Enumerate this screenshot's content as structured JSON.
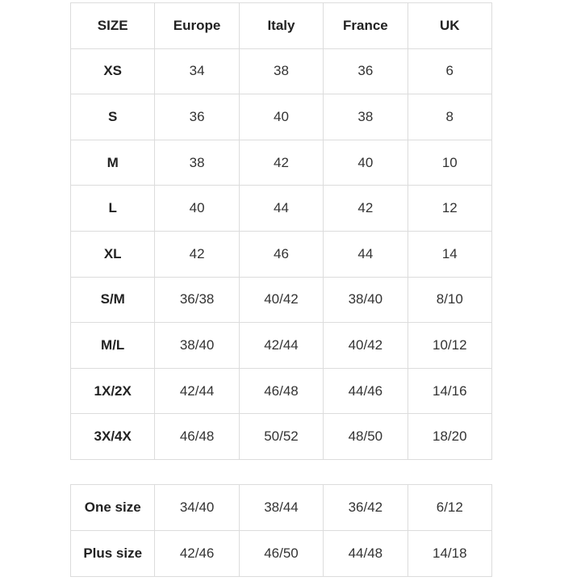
{
  "size_table": {
    "headers": [
      "SIZE",
      "Europe",
      "Italy",
      "France",
      "UK"
    ],
    "rows": [
      [
        "XS",
        "34",
        "38",
        "36",
        "6"
      ],
      [
        "S",
        "36",
        "40",
        "38",
        "8"
      ],
      [
        "M",
        "38",
        "42",
        "40",
        "10"
      ],
      [
        "L",
        "40",
        "44",
        "42",
        "12"
      ],
      [
        "XL",
        "42",
        "46",
        "44",
        "14"
      ],
      [
        "S/M",
        "36/38",
        "40/42",
        "38/40",
        "8/10"
      ],
      [
        "M/L",
        "38/40",
        "42/44",
        "40/42",
        "10/12"
      ],
      [
        "1X/2X",
        "42/44",
        "46/48",
        "44/46",
        "14/16"
      ],
      [
        "3X/4X",
        "46/48",
        "50/52",
        "48/50",
        "18/20"
      ]
    ]
  },
  "extra_table": {
    "rows": [
      [
        "One size",
        "34/40",
        "38/44",
        "36/42",
        "6/12"
      ],
      [
        "Plus size",
        "42/46",
        "46/50",
        "44/48",
        "14/18"
      ]
    ]
  }
}
